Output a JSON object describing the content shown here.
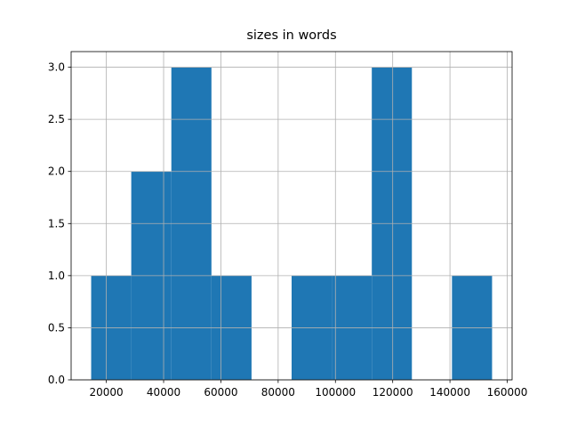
{
  "chart_data": {
    "type": "histogram",
    "title": "sizes in words",
    "bins": [
      14700,
      28700,
      42700,
      56700,
      70700,
      84700,
      98700,
      112700,
      126700,
      140700,
      154700
    ],
    "values": [
      1,
      2,
      3,
      1,
      0,
      1,
      1,
      3,
      0,
      1
    ],
    "color": "#1f77b4",
    "xlim": [
      7700,
      161700
    ],
    "xticks": [
      20000,
      40000,
      60000,
      80000,
      100000,
      120000,
      140000,
      160000
    ],
    "ylim": [
      0,
      3.15
    ],
    "yticks": [
      {
        "value": 0,
        "label": "0.0"
      },
      {
        "value": 0.5,
        "label": "0.5"
      },
      {
        "value": 1,
        "label": "1.0"
      },
      {
        "value": 1.5,
        "label": "1.5"
      },
      {
        "value": 2,
        "label": "2.0"
      },
      {
        "value": 2.5,
        "label": "2.5"
      },
      {
        "value": 3,
        "label": "3.0"
      }
    ],
    "grid": true
  }
}
